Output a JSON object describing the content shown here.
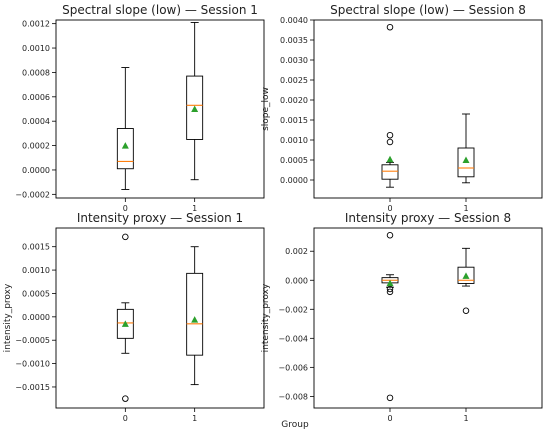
{
  "figure": {
    "xlabel": "Group"
  },
  "chart_data": [
    {
      "type": "box",
      "title": "Spectral slope (low) — Session 1",
      "ylabel": "",
      "ylim": [
        -0.00023,
        0.00123
      ],
      "yticks": [
        -0.0002,
        0,
        0.0002,
        0.0004,
        0.0006,
        0.0008,
        0.001,
        0.0012
      ],
      "ytick_labels": [
        "−0.0002",
        "0.0000",
        "0.0002",
        "0.0004",
        "0.0006",
        "0.0008",
        "0.0010",
        "0.0012"
      ],
      "categories": [
        "0",
        "1"
      ],
      "boxes": [
        {
          "whisker_low": -0.00016,
          "q1": 1e-05,
          "median": 7e-05,
          "q3": 0.00034,
          "whisker_high": 0.00084,
          "mean": 0.0002,
          "fliers": []
        },
        {
          "whisker_low": -8e-05,
          "q1": 0.00025,
          "median": 0.00053,
          "q3": 0.00077,
          "whisker_high": 0.00121,
          "mean": 0.0005,
          "fliers": []
        }
      ]
    },
    {
      "type": "box",
      "title": "Spectral slope (low) — Session 8",
      "ylabel": "slope_low",
      "ylim": [
        -0.00045,
        0.004
      ],
      "yticks": [
        0,
        0.0005,
        0.001,
        0.0015,
        0.002,
        0.0025,
        0.003,
        0.0035,
        0.004
      ],
      "ytick_labels": [
        "0.0000",
        "0.0005",
        "0.0010",
        "0.0015",
        "0.0020",
        "0.0025",
        "0.0030",
        "0.0035",
        "0.0040"
      ],
      "categories": [
        "0",
        "1"
      ],
      "boxes": [
        {
          "whisker_low": -0.00018,
          "q1": 2e-05,
          "median": 0.00022,
          "q3": 0.00038,
          "whisker_high": 0.00044,
          "mean": 0.00052,
          "fliers": [
            0.00382,
            0.00112,
            0.00095
          ]
        },
        {
          "whisker_low": -7e-05,
          "q1": 8e-05,
          "median": 0.0003,
          "q3": 0.0008,
          "whisker_high": 0.00165,
          "mean": 0.0005,
          "fliers": []
        }
      ]
    },
    {
      "type": "box",
      "title": "Intensity proxy — Session 1",
      "ylabel": "intensity_proxy",
      "ylim": [
        -0.00195,
        0.0019
      ],
      "yticks": [
        -0.0015,
        -0.001,
        -0.0005,
        0,
        0.0005,
        0.001,
        0.0015
      ],
      "ytick_labels": [
        "−0.0015",
        "−0.0010",
        "−0.0005",
        "0.0000",
        "0.0005",
        "0.0010",
        "0.0015"
      ],
      "categories": [
        "0",
        "1"
      ],
      "boxes": [
        {
          "whisker_low": -0.00078,
          "q1": -0.00046,
          "median": -0.00013,
          "q3": 0.00016,
          "whisker_high": 0.0003,
          "mean": -0.00015,
          "fliers": [
            0.00171,
            -0.00175
          ]
        },
        {
          "whisker_low": -0.00145,
          "q1": -0.00082,
          "median": -0.00015,
          "q3": 0.00093,
          "whisker_high": 0.0015,
          "mean": -6e-05,
          "fliers": []
        }
      ]
    },
    {
      "type": "box",
      "title": "Intensity proxy — Session 8",
      "ylabel": "intensity_proxy",
      "ylim": [
        -0.0088,
        0.0036
      ],
      "yticks": [
        -0.008,
        -0.006,
        -0.004,
        -0.002,
        0,
        0.002
      ],
      "ytick_labels": [
        "−0.008",
        "−0.006",
        "−0.004",
        "−0.002",
        "0.000",
        "0.002"
      ],
      "categories": [
        "0",
        "1"
      ],
      "boxes": [
        {
          "whisker_low": -0.00048,
          "q1": -0.00018,
          "median": 0.0,
          "q3": 0.00018,
          "whisker_high": 0.00038,
          "mean": -0.0002,
          "fliers": [
            0.0031,
            -0.0006,
            -0.0008,
            -0.0081
          ]
        },
        {
          "whisker_low": -0.0004,
          "q1": -0.00022,
          "median": 0.0,
          "q3": 0.0009,
          "whisker_high": 0.0022,
          "mean": 0.0003,
          "fliers": [
            -0.0021
          ]
        }
      ]
    }
  ],
  "colors": {
    "axis": "#000000",
    "box": "#000000",
    "median": "#ff7f0e",
    "mean": "#2ca02c",
    "flier": "#000000",
    "text": "#222222"
  }
}
